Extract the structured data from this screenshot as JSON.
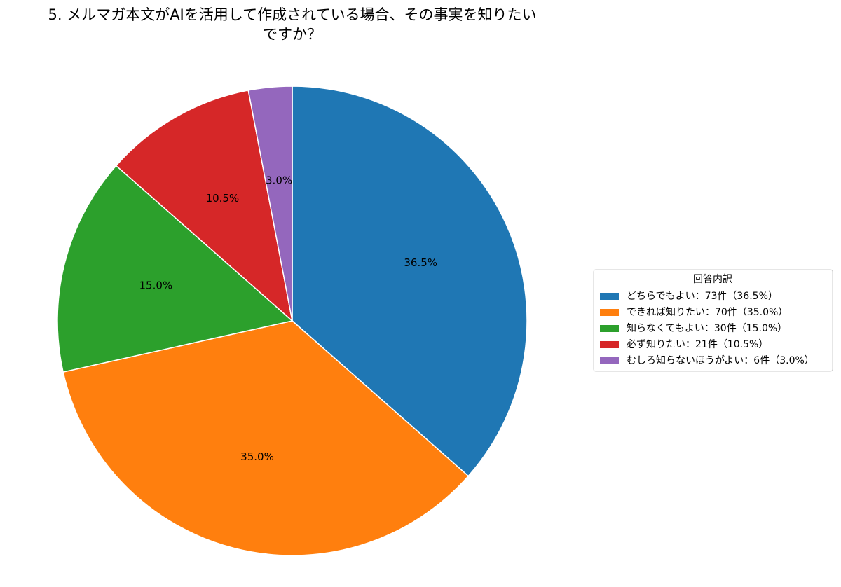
{
  "chart_data": {
    "type": "pie",
    "title": [
      "5. メルマガ本文がAIを活用して作成されている場合、その事実を知りたい",
      "ですか？"
    ],
    "categories": [
      "どちらでもよい：73件（36.5%）",
      "できれば知りたい：70件（35.0%）",
      "知らなくてもよい：30件（15.0%）",
      "必ず知りたい：21件（10.5%）",
      "むしろ知らないほうがよい：6件（3.0%）"
    ],
    "values": [
      36.5,
      35.0,
      15.0,
      10.5,
      3.0
    ],
    "value_labels": [
      "36.5%",
      "35.0%",
      "15.0%",
      "10.5%",
      "3.0%"
    ],
    "colors": [
      "#1f77b4",
      "#ff7f0e",
      "#2ca02c",
      "#d62728",
      "#9467bd"
    ],
    "legend_title": "回答内訳",
    "legend": "right"
  }
}
